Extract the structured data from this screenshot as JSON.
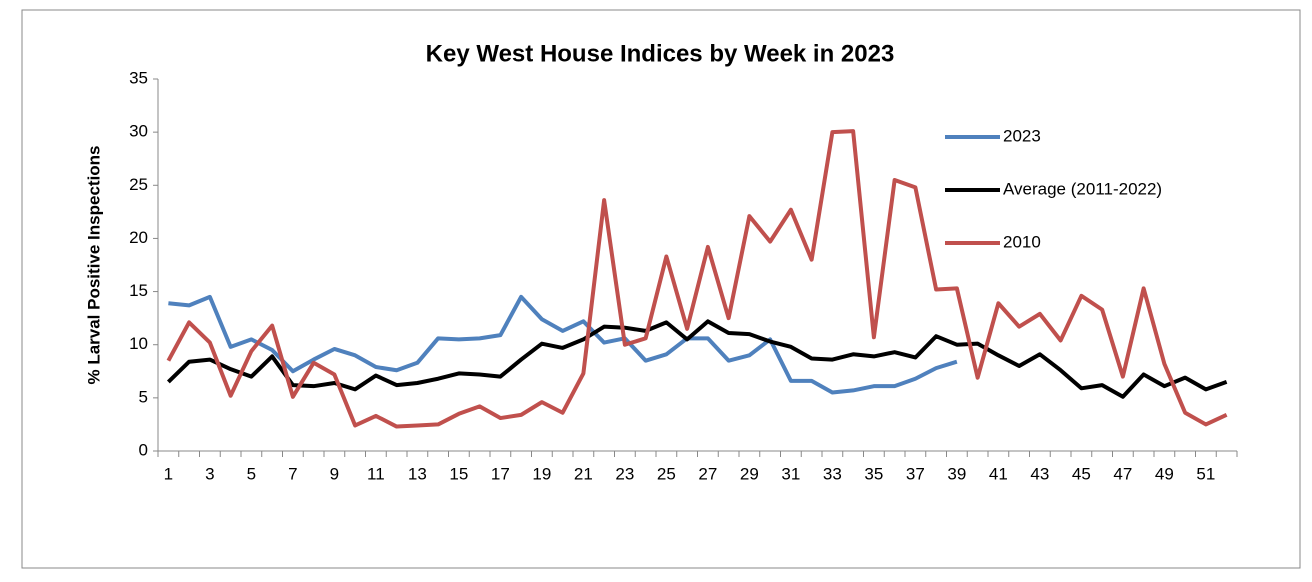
{
  "chart_data": {
    "type": "line",
    "title": "Key West House Indices by Week in 2023",
    "y_label": "% Larval Positive Inspections",
    "categories": [
      1,
      null,
      3,
      null,
      5,
      null,
      7,
      null,
      9,
      null,
      11,
      null,
      13,
      null,
      15,
      null,
      17,
      null,
      19,
      null,
      21,
      null,
      23,
      null,
      25,
      null,
      27,
      null,
      29,
      null,
      31,
      null,
      33,
      null,
      35,
      null,
      37,
      null,
      39,
      null,
      41,
      null,
      43,
      null,
      45,
      null,
      47,
      null,
      49,
      null,
      51,
      null
    ],
    "ylim": [
      0,
      35
    ],
    "yticks": [
      0,
      5,
      10,
      15,
      20,
      25,
      30,
      35
    ],
    "grid": false,
    "legend": "upper right",
    "series": [
      {
        "name": "2023",
        "color": "#4f81bd",
        "values": [
          13.9,
          13.7,
          14.5,
          9.8,
          10.5,
          9.5,
          7.5,
          8.6,
          9.6,
          9.0,
          7.9,
          7.6,
          8.3,
          10.6,
          10.5,
          10.6,
          10.9,
          14.5,
          12.4,
          11.3,
          12.2,
          10.2,
          10.6,
          8.5,
          9.1,
          10.6,
          10.6,
          8.5,
          9.0,
          10.5,
          6.6,
          6.6,
          5.5,
          5.7,
          6.1,
          6.1,
          6.8,
          7.8,
          8.4,
          null,
          null,
          null,
          null,
          null,
          null,
          null,
          null,
          null,
          null,
          null,
          null,
          null
        ]
      },
      {
        "name": "Average (2011-2022)",
        "color": "#000000",
        "values": [
          6.5,
          8.4,
          8.6,
          7.7,
          7.0,
          8.9,
          6.2,
          6.1,
          6.4,
          5.8,
          7.1,
          6.2,
          6.4,
          6.8,
          7.3,
          7.2,
          7.0,
          8.6,
          10.1,
          9.7,
          10.5,
          11.7,
          11.6,
          11.3,
          12.1,
          10.5,
          12.2,
          11.1,
          11.0,
          10.3,
          9.8,
          8.7,
          8.6,
          9.1,
          8.9,
          9.3,
          8.8,
          10.8,
          10.0,
          10.1,
          9.0,
          8.0,
          9.1,
          7.6,
          5.9,
          6.2,
          5.1,
          7.2,
          6.1,
          6.9,
          5.8,
          6.5
        ]
      },
      {
        "name": "2010",
        "color": "#c0504d",
        "values": [
          8.5,
          12.1,
          10.2,
          5.2,
          9.4,
          11.8,
          5.1,
          8.3,
          7.2,
          2.4,
          3.3,
          2.3,
          2.4,
          2.5,
          3.5,
          4.2,
          3.1,
          3.4,
          4.6,
          3.6,
          7.3,
          23.6,
          10.0,
          10.6,
          18.3,
          11.5,
          19.2,
          12.5,
          22.1,
          19.7,
          22.7,
          18.0,
          30.0,
          30.1,
          10.7,
          25.5,
          24.8,
          15.2,
          15.3,
          6.9,
          13.9,
          11.7,
          12.9,
          10.4,
          14.6,
          13.3,
          7.0,
          15.3,
          8.2,
          3.6,
          2.5,
          3.4
        ]
      }
    ]
  }
}
